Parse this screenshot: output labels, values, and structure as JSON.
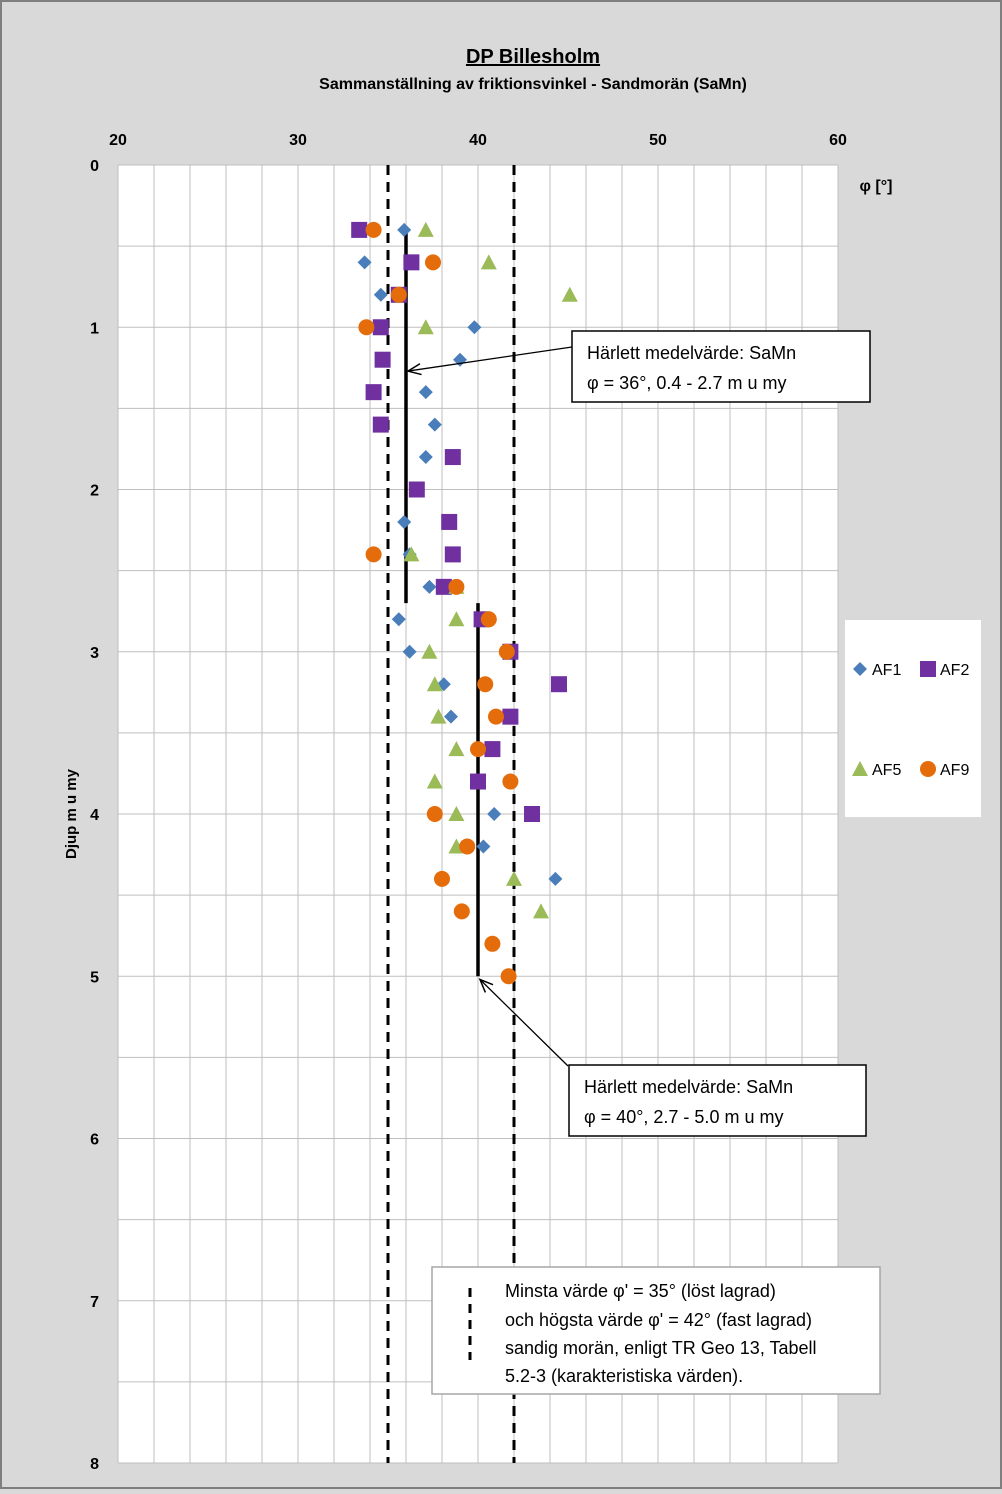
{
  "chart_data": {
    "type": "scatter",
    "title": "DP Billesholm",
    "subtitle": "Sammanställning av friktionsvinkel - Sandmorän (SaMn)",
    "xlabel": "φ [°]",
    "ylabel": "Djup m u my",
    "xlim": [
      20,
      60
    ],
    "ylim": [
      0,
      8
    ],
    "y_inverted": true,
    "x_axis_position": "top",
    "x_ticks": [
      "20",
      "30",
      "40",
      "50",
      "60"
    ],
    "y_ticks": [
      "0",
      "1",
      "2",
      "3",
      "4",
      "5",
      "6",
      "7",
      "8"
    ],
    "grid": true,
    "legend_position": "right",
    "series": [
      {
        "name": "AF1",
        "marker": "diamond",
        "color": "#4a7ebb",
        "points": [
          [
            35.9,
            0.4
          ],
          [
            33.7,
            0.6
          ],
          [
            34.6,
            0.8
          ],
          [
            39.8,
            1.0
          ],
          [
            39.0,
            1.2
          ],
          [
            37.1,
            1.4
          ],
          [
            37.6,
            1.6
          ],
          [
            37.1,
            1.8
          ],
          [
            35.9,
            2.2
          ],
          [
            36.2,
            2.4
          ],
          [
            37.3,
            2.6
          ],
          [
            35.6,
            2.8
          ],
          [
            36.2,
            3.0
          ],
          [
            38.1,
            3.2
          ],
          [
            38.5,
            3.4
          ],
          [
            40.9,
            4.0
          ],
          [
            40.3,
            4.2
          ],
          [
            44.3,
            4.4
          ]
        ]
      },
      {
        "name": "AF2",
        "marker": "square",
        "color": "#7030a0",
        "points": [
          [
            33.4,
            0.4
          ],
          [
            36.3,
            0.6
          ],
          [
            35.6,
            0.8
          ],
          [
            34.6,
            1.0
          ],
          [
            34.7,
            1.2
          ],
          [
            34.2,
            1.4
          ],
          [
            34.6,
            1.6
          ],
          [
            38.6,
            1.8
          ],
          [
            36.6,
            2.0
          ],
          [
            38.4,
            2.2
          ],
          [
            38.6,
            2.4
          ],
          [
            38.1,
            2.6
          ],
          [
            40.2,
            2.8
          ],
          [
            41.8,
            3.0
          ],
          [
            44.5,
            3.2
          ],
          [
            41.8,
            3.4
          ],
          [
            40.8,
            3.6
          ],
          [
            40.0,
            3.8
          ],
          [
            43.0,
            4.0
          ]
        ]
      },
      {
        "name": "AF5",
        "marker": "triangle",
        "color": "#9bbb59",
        "points": [
          [
            37.1,
            0.4
          ],
          [
            40.6,
            0.6
          ],
          [
            45.1,
            0.8
          ],
          [
            37.1,
            1.0
          ],
          [
            36.3,
            2.4
          ],
          [
            38.8,
            2.6
          ],
          [
            38.8,
            2.8
          ],
          [
            37.3,
            3.0
          ],
          [
            37.6,
            3.2
          ],
          [
            37.8,
            3.4
          ],
          [
            38.8,
            3.6
          ],
          [
            37.6,
            3.8
          ],
          [
            38.8,
            4.0
          ],
          [
            38.8,
            4.2
          ],
          [
            42.0,
            4.4
          ],
          [
            43.5,
            4.6
          ]
        ]
      },
      {
        "name": "AF9",
        "marker": "circle",
        "color": "#e46c0a",
        "points": [
          [
            34.2,
            0.4
          ],
          [
            37.5,
            0.6
          ],
          [
            35.6,
            0.8
          ],
          [
            33.8,
            1.0
          ],
          [
            34.2,
            2.4
          ],
          [
            38.8,
            2.6
          ],
          [
            40.6,
            2.8
          ],
          [
            41.6,
            3.0
          ],
          [
            40.4,
            3.2
          ],
          [
            41.0,
            3.4
          ],
          [
            40.0,
            3.6
          ],
          [
            41.8,
            3.8
          ],
          [
            37.6,
            4.0
          ],
          [
            39.4,
            4.2
          ],
          [
            38.0,
            4.4
          ],
          [
            39.1,
            4.6
          ],
          [
            40.8,
            4.8
          ],
          [
            41.7,
            5.0
          ]
        ]
      }
    ],
    "mean_lines": [
      {
        "x": 36,
        "y_from": 0.4,
        "y_to": 2.7
      },
      {
        "x": 40,
        "y_from": 2.7,
        "y_to": 5.0
      }
    ],
    "limit_lines": [
      35,
      42
    ],
    "annotations": [
      {
        "line1": "Härlett medelvärde:  SaMn",
        "line2": "φ = 36°, 0.4 - 2.7 m u my",
        "target": [
          36,
          1.27
        ]
      },
      {
        "line1": "Härlett medelvärde:  SaMn",
        "line2": "φ = 40°, 2.7 - 5.0 m u my",
        "target": [
          40,
          5.02
        ]
      }
    ],
    "note": [
      "Minsta värde φ' = 35° (löst lagrad)",
      "och högsta värde φ' = 42° (fast lagrad)",
      "sandig morän, enligt TR Geo 13, Tabell",
      "5.2-3 (karakteristiska värden)."
    ]
  }
}
